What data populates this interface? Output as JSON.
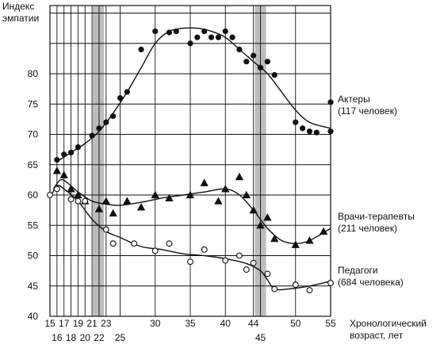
{
  "chart_data": {
    "type": "scatter",
    "ylabel": [
      "Индекс",
      "эмпатии"
    ],
    "xlabel": [
      "Хронологический",
      "возраст, лет"
    ],
    "xlim": [
      15,
      55
    ],
    "ylim": [
      40,
      90
    ],
    "x_ticks_row1": [
      "15",
      "17",
      "19",
      "21",
      "23",
      "30",
      "35",
      "40",
      "44",
      "50",
      "55"
    ],
    "x_ticks_row1_values": [
      15,
      17,
      19,
      21,
      23,
      30,
      35,
      40,
      44,
      50,
      55
    ],
    "x_ticks_row2": [
      "16",
      "18",
      "20",
      "22",
      "25",
      "45"
    ],
    "x_ticks_row2_values": [
      16,
      18,
      20,
      22,
      25,
      45
    ],
    "y_ticks": [
      "40",
      "45",
      "50",
      "55",
      "60",
      "65",
      "70",
      "75",
      "80"
    ],
    "y_ticks_values": [
      40,
      45,
      50,
      55,
      60,
      65,
      70,
      75,
      80
    ],
    "grid": true,
    "vertical_grid_x": [
      16,
      17,
      18,
      19,
      20,
      21,
      22,
      23,
      25,
      30,
      35,
      40,
      44,
      45,
      50,
      55
    ],
    "shaded_bands": [
      [
        21.1,
        22.7
      ],
      [
        44.2,
        45.8
      ]
    ],
    "series": [
      {
        "name_lines": [
          "Актеры",
          "(117 человек)"
        ],
        "marker": "filled-circle",
        "points": [
          [
            16,
            65.8
          ],
          [
            17,
            66.7
          ],
          [
            18,
            67
          ],
          [
            19,
            67.9
          ],
          [
            21,
            69.8
          ],
          [
            22,
            71
          ],
          [
            23,
            72
          ],
          [
            24,
            73
          ],
          [
            25,
            76
          ],
          [
            26,
            77
          ],
          [
            28,
            84
          ],
          [
            30,
            87
          ],
          [
            32,
            86.8
          ],
          [
            33,
            87
          ],
          [
            35,
            85
          ],
          [
            36,
            86
          ],
          [
            37,
            87
          ],
          [
            38,
            86
          ],
          [
            39,
            86
          ],
          [
            40,
            87
          ],
          [
            41,
            86
          ],
          [
            42,
            84
          ],
          [
            43,
            82
          ],
          [
            44,
            83
          ],
          [
            45,
            81
          ],
          [
            46,
            82
          ],
          [
            47,
            79.8
          ],
          [
            50,
            72
          ],
          [
            51,
            71
          ],
          [
            52,
            70.5
          ],
          [
            53,
            70.3
          ],
          [
            55,
            70.5
          ],
          [
            55,
            75.3
          ]
        ],
        "trend": [
          [
            16,
            65.5
          ],
          [
            18,
            67
          ],
          [
            20,
            68.5
          ],
          [
            22,
            70.5
          ],
          [
            24,
            73.5
          ],
          [
            26,
            77
          ],
          [
            28,
            81
          ],
          [
            30,
            85
          ],
          [
            32,
            87
          ],
          [
            34,
            87.5
          ],
          [
            36,
            87.5
          ],
          [
            38,
            87
          ],
          [
            40,
            86
          ],
          [
            42,
            84
          ],
          [
            44,
            82
          ],
          [
            46,
            80
          ],
          [
            48,
            77
          ],
          [
            50,
            74
          ],
          [
            52,
            72
          ],
          [
            55,
            71
          ]
        ]
      },
      {
        "name_lines": [
          "Врачи-терапевты",
          "(211 человек)"
        ],
        "marker": "filled-triangle",
        "points": [
          [
            16,
            64
          ],
          [
            17,
            63.3
          ],
          [
            18,
            61
          ],
          [
            19,
            60
          ],
          [
            20,
            59
          ],
          [
            22,
            57.7
          ],
          [
            23,
            59
          ],
          [
            24,
            57
          ],
          [
            26,
            59
          ],
          [
            28,
            58
          ],
          [
            30,
            60
          ],
          [
            32,
            59.5
          ],
          [
            35,
            60
          ],
          [
            37,
            62
          ],
          [
            39,
            59
          ],
          [
            40,
            61
          ],
          [
            42,
            63
          ],
          [
            43,
            60
          ],
          [
            44,
            57.5
          ],
          [
            45,
            55
          ],
          [
            46,
            56.3
          ],
          [
            47,
            52.8
          ],
          [
            50,
            51.8
          ],
          [
            52,
            52.5
          ],
          [
            54,
            54
          ]
        ],
        "trend": [
          [
            15.5,
            61
          ],
          [
            16.5,
            62.5
          ],
          [
            17.5,
            62
          ],
          [
            19,
            60.5
          ],
          [
            21,
            59
          ],
          [
            23,
            58.5
          ],
          [
            25,
            58.3
          ],
          [
            28,
            58.8
          ],
          [
            31,
            59.5
          ],
          [
            34,
            60
          ],
          [
            37,
            60.5
          ],
          [
            40,
            61
          ],
          [
            42,
            60
          ],
          [
            44,
            57.5
          ],
          [
            46,
            54.5
          ],
          [
            48,
            52.5
          ],
          [
            50,
            52
          ],
          [
            52,
            52.5
          ],
          [
            55,
            54.5
          ]
        ]
      },
      {
        "name_lines": [
          "Педагоги",
          "(684 человека)"
        ],
        "marker": "open-circle",
        "points": [
          [
            15,
            60
          ],
          [
            16,
            61
          ],
          [
            18,
            59.3
          ],
          [
            19,
            59
          ],
          [
            20,
            59
          ],
          [
            23,
            54.3
          ],
          [
            24,
            52
          ],
          [
            27,
            52
          ],
          [
            30,
            50.8
          ],
          [
            32,
            52
          ],
          [
            35,
            49
          ],
          [
            37,
            51
          ],
          [
            40,
            49.2
          ],
          [
            42,
            50
          ],
          [
            43,
            47.7
          ],
          [
            44,
            48.8
          ],
          [
            46,
            47
          ],
          [
            47,
            44.5
          ],
          [
            50,
            45.2
          ],
          [
            52,
            44.3
          ],
          [
            55,
            45.5
          ]
        ],
        "trend": [
          [
            15,
            59.5
          ],
          [
            16,
            61.5
          ],
          [
            17,
            61
          ],
          [
            19,
            59
          ],
          [
            21,
            56
          ],
          [
            23,
            54
          ],
          [
            25,
            53
          ],
          [
            28,
            51.5
          ],
          [
            31,
            51
          ],
          [
            34,
            50.3
          ],
          [
            37,
            50
          ],
          [
            40,
            49.5
          ],
          [
            43,
            48.7
          ],
          [
            45,
            47.5
          ],
          [
            46,
            46
          ],
          [
            47,
            44.5
          ],
          [
            49,
            44.5
          ],
          [
            52,
            45
          ],
          [
            55,
            45.8
          ]
        ]
      }
    ]
  }
}
